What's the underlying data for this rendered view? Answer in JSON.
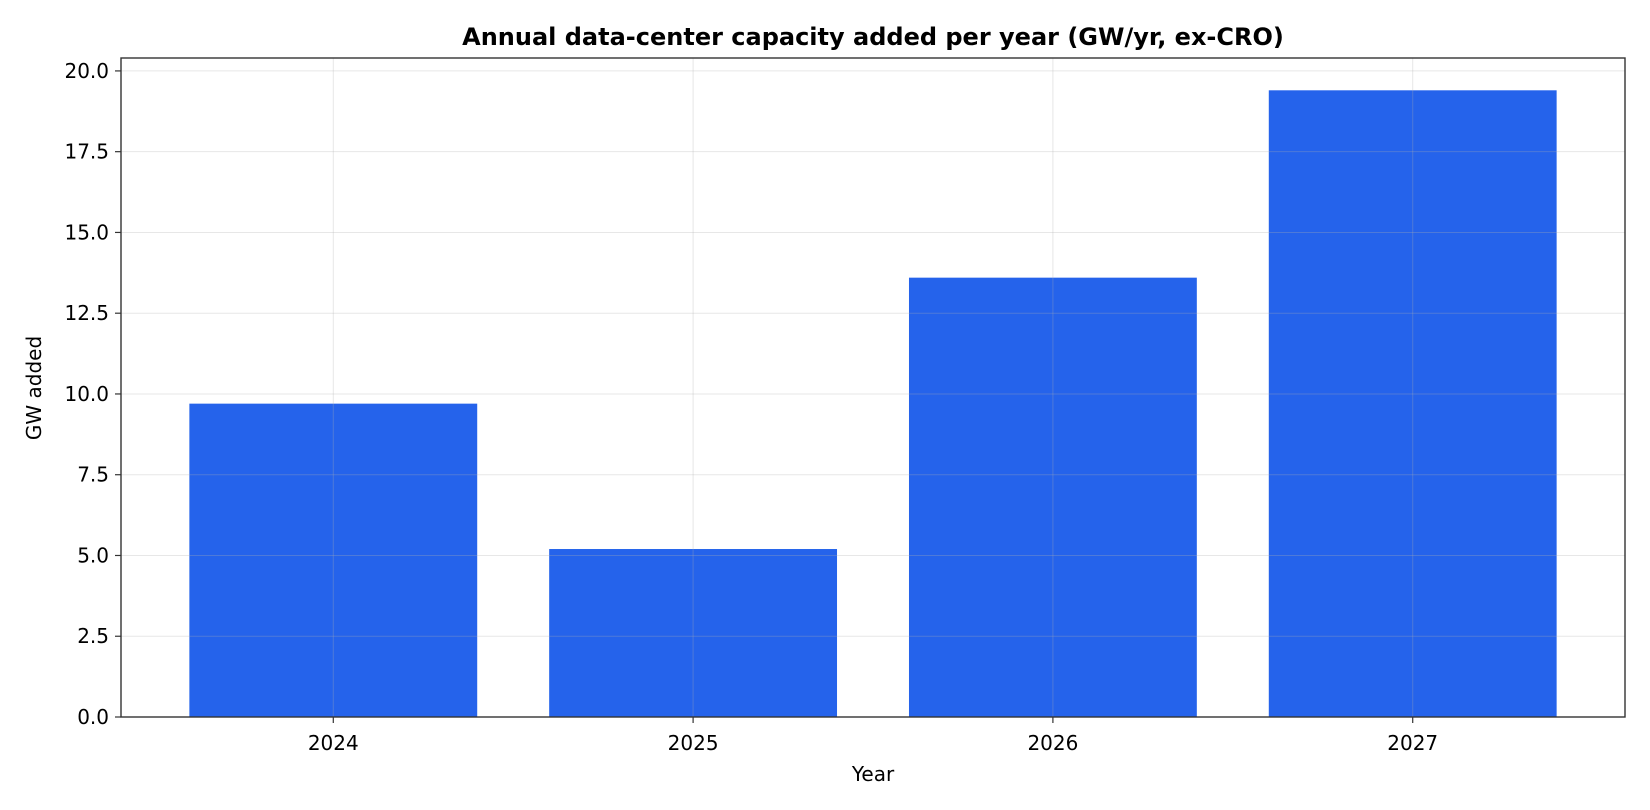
{
  "chart_data": {
    "type": "bar",
    "title": "Annual data-center capacity added per year (GW/yr, ex-CRO)",
    "xlabel": "Year",
    "ylabel": "GW added",
    "categories": [
      "2024",
      "2025",
      "2026",
      "2027"
    ],
    "values": [
      9.7,
      5.2,
      13.6,
      19.4
    ],
    "ylim": [
      0,
      20.4
    ],
    "yticks": [
      0.0,
      2.5,
      5.0,
      7.5,
      10.0,
      12.5,
      15.0,
      17.5,
      20.0
    ],
    "ytick_labels": [
      "0.0",
      "2.5",
      "5.0",
      "7.5",
      "10.0",
      "12.5",
      "15.0",
      "17.5",
      "20.0"
    ],
    "grid": true,
    "bar_color": "#2563eb"
  }
}
